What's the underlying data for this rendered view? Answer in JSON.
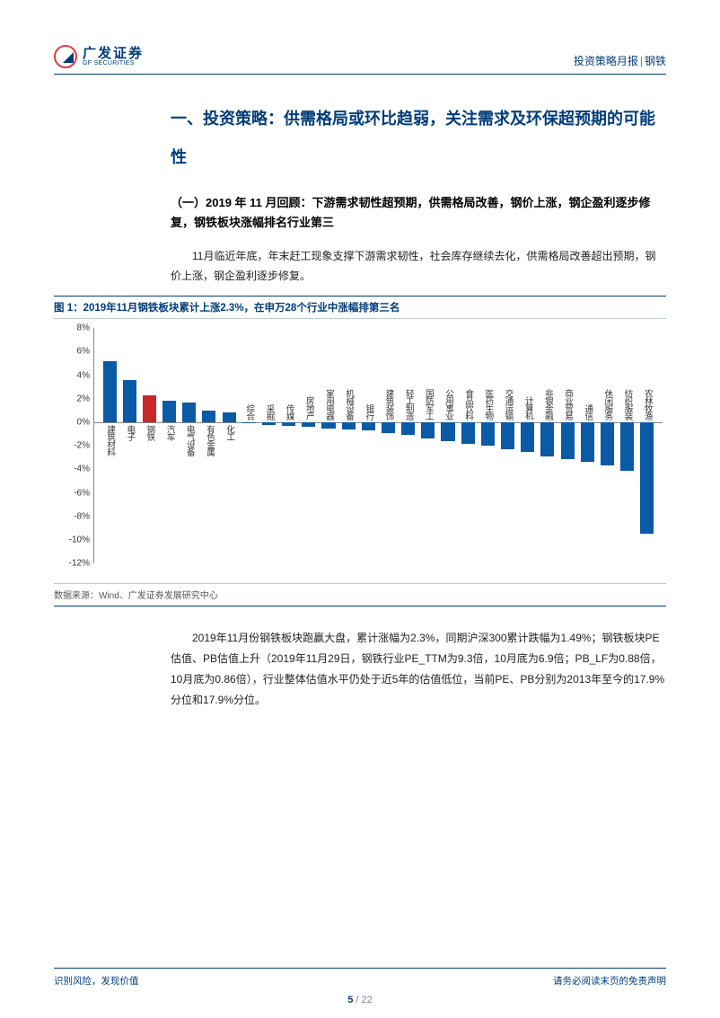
{
  "header": {
    "logo_cn": "广发证券",
    "logo_en": "GF SECURITIES",
    "doc_type": "投资策略月报",
    "sector": "钢铁"
  },
  "section": {
    "h1": "一、投资策略：供需格局或环比趋弱，关注需求及环保超预期的可能性",
    "h2": "（一）2019 年 11 月回顾：下游需求韧性超预期，供需格局改善，钢价上涨，钢企盈利逐步修复，钢铁板块涨幅排名行业第三",
    "p1": "11月临近年底，年末赶工现象支撑下游需求韧性，社会库存继续去化，供需格局改善超出预期，钢价上涨，钢企盈利逐步修复。",
    "p2": "2019年11月份钢铁板块跑赢大盘，累计涨幅为2.3%，同期沪深300累计跌幅为1.49%；钢铁板块PE估值、PB估值上升（2019年11月29日，钢铁行业PE_TTM为9.3倍，10月底为6.9倍；PB_LF为0.88倍，10月底为0.86倍），行业整体估值水平仍处于近5年的估值低位，当前PE、PB分别为2013年至今的17.9%分位和17.9%分位。"
  },
  "figure": {
    "title": "图 1：2019年11月钢铁板块累计上涨2.3%，在申万28个行业中涨幅排第三名",
    "source": "数据来源：Wind、广发证券发展研究中心",
    "type": "bar",
    "y_min": -12,
    "y_max": 8,
    "y_step": 2,
    "y_suffix": "%",
    "bar_color_default": "#0a5aa6",
    "bar_color_highlight": "#c62828",
    "axis_color": "#888888",
    "label_fontsize": 9.5,
    "categories": [
      "建筑材料",
      "电子",
      "钢铁",
      "汽车",
      "电气设备",
      "有色金属",
      "化工",
      "综合",
      "采掘",
      "传媒",
      "房地产",
      "家用电器",
      "机械设备",
      "银行",
      "建筑装饰",
      "轻工制造",
      "国防军工",
      "公用事业",
      "食品饮料",
      "医药生物",
      "交通运输",
      "计算机",
      "非银金融",
      "商业贸易",
      "通信",
      "休闲服务",
      "纺织服装",
      "农林牧渔"
    ],
    "values": [
      5.2,
      3.6,
      2.3,
      1.8,
      1.7,
      1.0,
      0.8,
      -0.1,
      -0.2,
      -0.3,
      -0.4,
      -0.5,
      -0.6,
      -0.7,
      -0.9,
      -1.1,
      -1.4,
      -1.6,
      -1.8,
      -2.0,
      -2.3,
      -2.5,
      -2.9,
      -3.1,
      -3.4,
      -3.7,
      -4.1,
      -9.5
    ],
    "highlight_index": 2
  },
  "footer": {
    "left": "识别风险，发现价值",
    "right": "请务必阅读末页的免责声明",
    "page_current": "5",
    "page_sep": " / ",
    "page_total": "22"
  }
}
